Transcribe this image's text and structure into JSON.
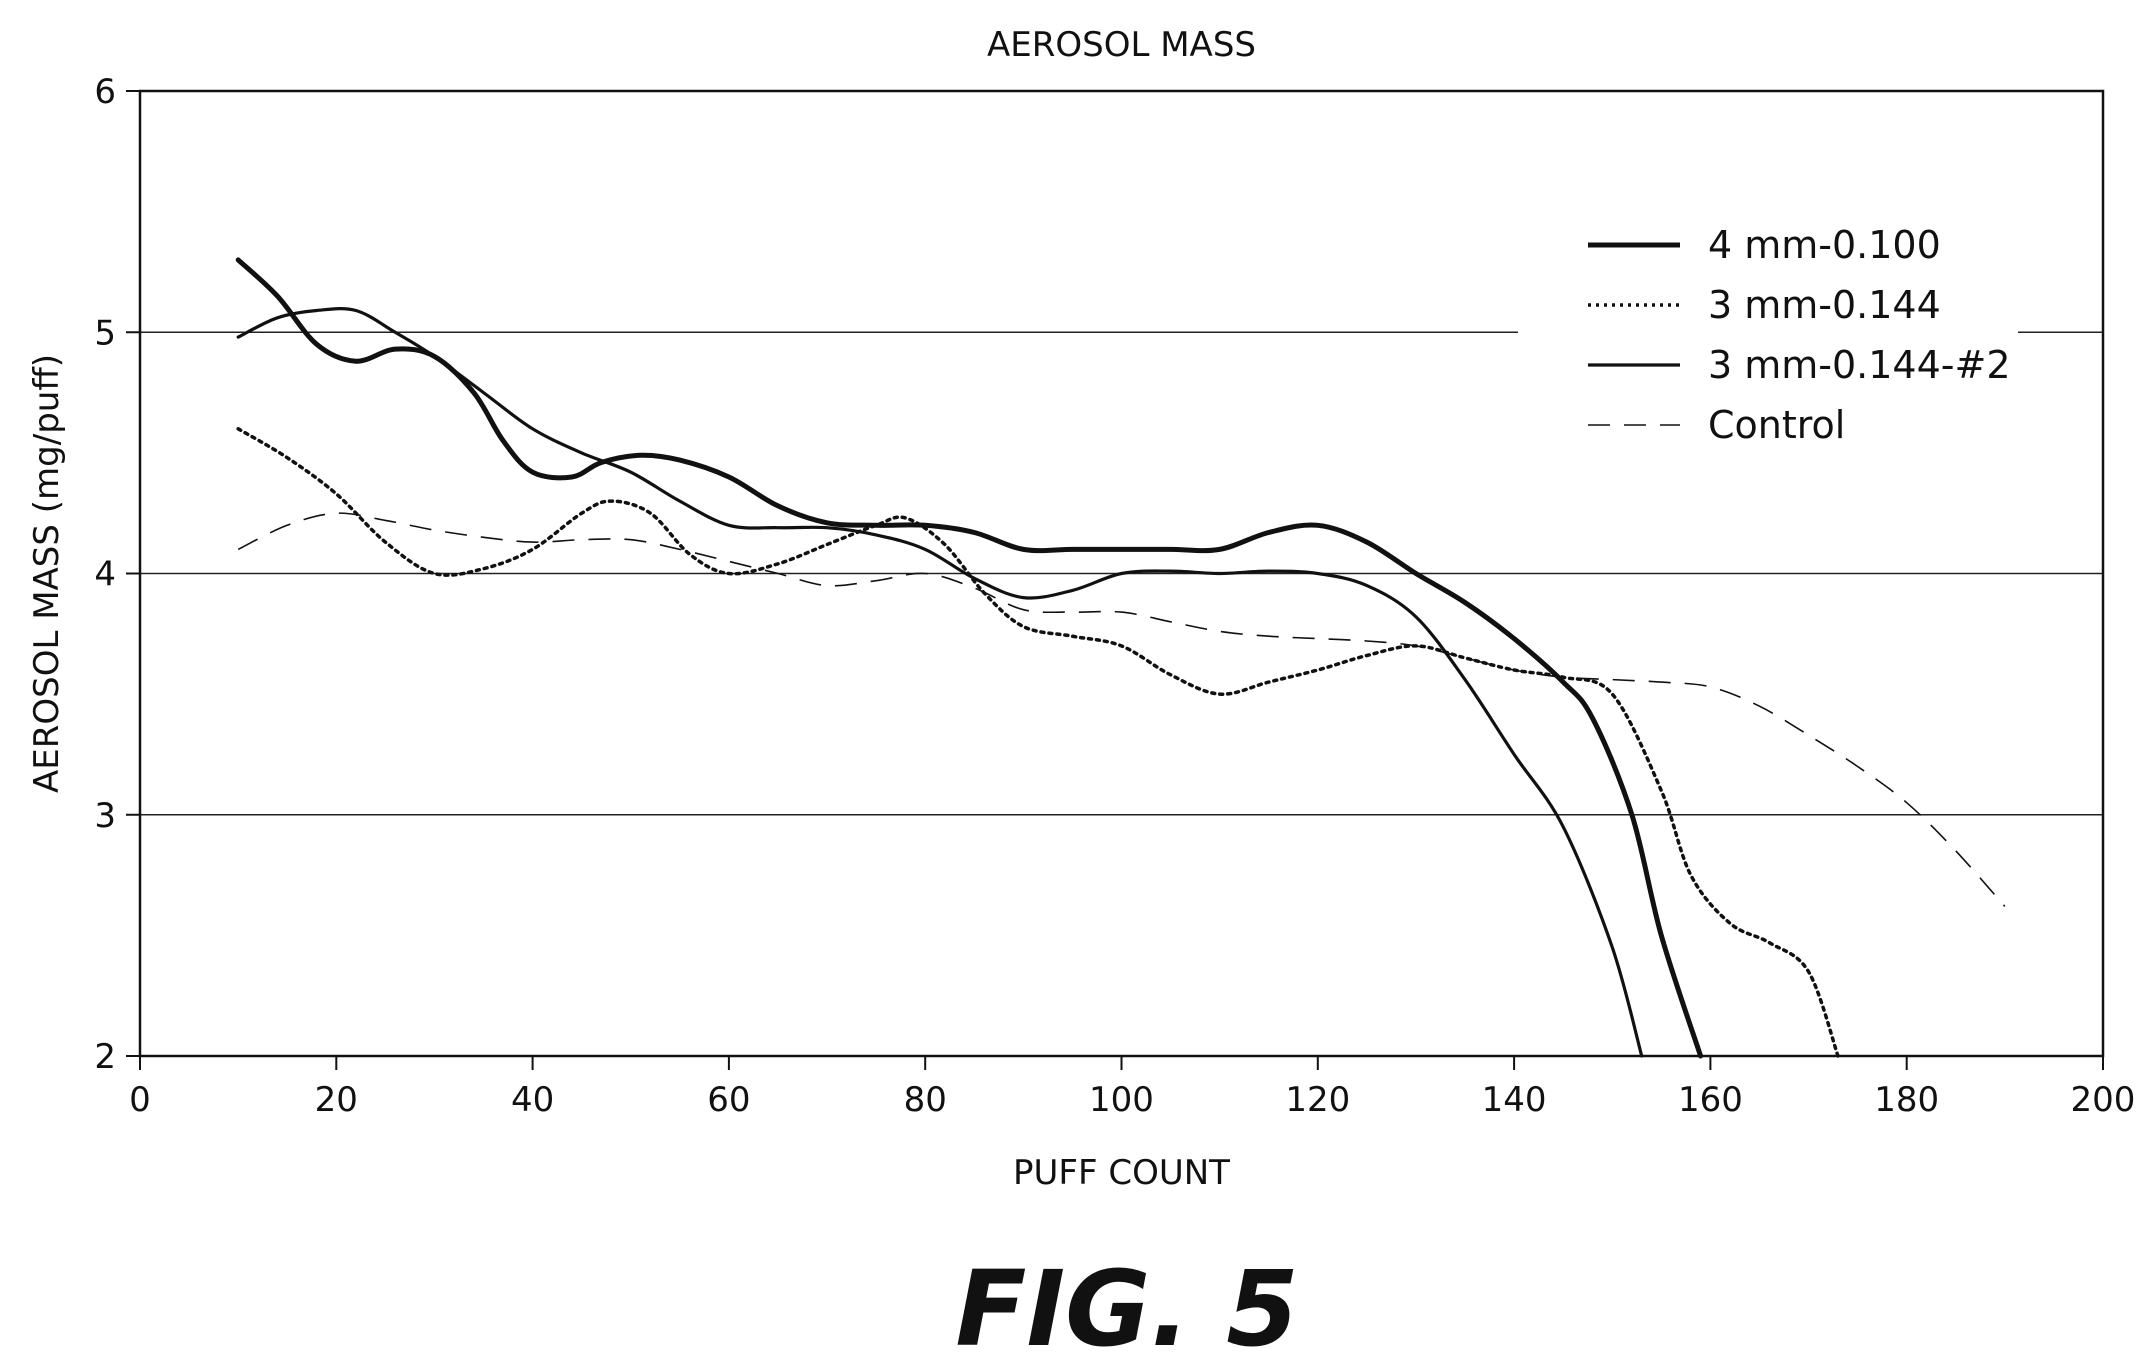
{
  "chart_data": {
    "type": "line",
    "title": "AEROSOL MASS",
    "xlabel": "PUFF COUNT",
    "ylabel": "AEROSOL MASS (mg/puff)",
    "xlim": [
      0,
      200
    ],
    "ylim": [
      2,
      6
    ],
    "x_ticks": [
      0,
      20,
      40,
      60,
      80,
      100,
      120,
      140,
      160,
      180,
      200
    ],
    "y_ticks": [
      2,
      3,
      4,
      5,
      6
    ],
    "grid": "horizontal",
    "legend_position": "top-right",
    "series": [
      {
        "name": "4 mm-0.100",
        "style": "solid-bold",
        "points": [
          [
            10,
            5.3
          ],
          [
            14,
            5.15
          ],
          [
            18,
            4.95
          ],
          [
            22,
            4.88
          ],
          [
            26,
            4.93
          ],
          [
            30,
            4.9
          ],
          [
            34,
            4.75
          ],
          [
            37,
            4.55
          ],
          [
            40,
            4.42
          ],
          [
            44,
            4.4
          ],
          [
            47,
            4.46
          ],
          [
            51,
            4.49
          ],
          [
            55,
            4.47
          ],
          [
            60,
            4.4
          ],
          [
            65,
            4.28
          ],
          [
            70,
            4.21
          ],
          [
            75,
            4.2
          ],
          [
            80,
            4.2
          ],
          [
            85,
            4.17
          ],
          [
            90,
            4.1
          ],
          [
            95,
            4.1
          ],
          [
            100,
            4.1
          ],
          [
            105,
            4.1
          ],
          [
            110,
            4.1
          ],
          [
            115,
            4.17
          ],
          [
            120,
            4.2
          ],
          [
            125,
            4.13
          ],
          [
            130,
            4.0
          ],
          [
            135,
            3.88
          ],
          [
            140,
            3.73
          ],
          [
            145,
            3.55
          ],
          [
            148,
            3.4
          ],
          [
            152,
            3.0
          ],
          [
            155,
            2.5
          ],
          [
            159,
            2.0
          ]
        ]
      },
      {
        "name": "3 mm-0.144",
        "style": "dotted",
        "points": [
          [
            10,
            4.6
          ],
          [
            15,
            4.48
          ],
          [
            20,
            4.33
          ],
          [
            25,
            4.13
          ],
          [
            30,
            4.0
          ],
          [
            35,
            4.02
          ],
          [
            40,
            4.1
          ],
          [
            45,
            4.25
          ],
          [
            48,
            4.3
          ],
          [
            52,
            4.25
          ],
          [
            56,
            4.08
          ],
          [
            60,
            4.0
          ],
          [
            65,
            4.04
          ],
          [
            70,
            4.12
          ],
          [
            75,
            4.2
          ],
          [
            78,
            4.23
          ],
          [
            82,
            4.12
          ],
          [
            86,
            3.92
          ],
          [
            90,
            3.78
          ],
          [
            95,
            3.74
          ],
          [
            100,
            3.7
          ],
          [
            105,
            3.58
          ],
          [
            110,
            3.5
          ],
          [
            115,
            3.55
          ],
          [
            120,
            3.6
          ],
          [
            125,
            3.66
          ],
          [
            130,
            3.7
          ],
          [
            135,
            3.65
          ],
          [
            140,
            3.6
          ],
          [
            145,
            3.57
          ],
          [
            150,
            3.5
          ],
          [
            155,
            3.1
          ],
          [
            158,
            2.75
          ],
          [
            162,
            2.55
          ],
          [
            166,
            2.47
          ],
          [
            170,
            2.35
          ],
          [
            173,
            2.0
          ]
        ]
      },
      {
        "name": "3 mm-0.144-#2",
        "style": "solid",
        "points": [
          [
            10,
            4.98
          ],
          [
            14,
            5.06
          ],
          [
            18,
            5.09
          ],
          [
            22,
            5.09
          ],
          [
            26,
            5.0
          ],
          [
            30,
            4.9
          ],
          [
            35,
            4.75
          ],
          [
            40,
            4.6
          ],
          [
            45,
            4.5
          ],
          [
            50,
            4.42
          ],
          [
            55,
            4.3
          ],
          [
            60,
            4.2
          ],
          [
            65,
            4.19
          ],
          [
            70,
            4.19
          ],
          [
            75,
            4.16
          ],
          [
            80,
            4.1
          ],
          [
            85,
            3.98
          ],
          [
            90,
            3.9
          ],
          [
            95,
            3.93
          ],
          [
            100,
            4.0
          ],
          [
            105,
            4.01
          ],
          [
            110,
            4.0
          ],
          [
            115,
            4.01
          ],
          [
            120,
            4.0
          ],
          [
            125,
            3.95
          ],
          [
            130,
            3.82
          ],
          [
            135,
            3.56
          ],
          [
            140,
            3.25
          ],
          [
            145,
            2.95
          ],
          [
            150,
            2.45
          ],
          [
            153,
            2.0
          ]
        ]
      },
      {
        "name": "Control",
        "style": "dashed",
        "points": [
          [
            10,
            4.1
          ],
          [
            15,
            4.2
          ],
          [
            20,
            4.25
          ],
          [
            25,
            4.22
          ],
          [
            30,
            4.18
          ],
          [
            35,
            4.15
          ],
          [
            40,
            4.13
          ],
          [
            45,
            4.14
          ],
          [
            50,
            4.14
          ],
          [
            55,
            4.1
          ],
          [
            60,
            4.05
          ],
          [
            65,
            4.0
          ],
          [
            70,
            3.95
          ],
          [
            75,
            3.97
          ],
          [
            80,
            4.0
          ],
          [
            85,
            3.94
          ],
          [
            90,
            3.85
          ],
          [
            95,
            3.84
          ],
          [
            100,
            3.84
          ],
          [
            105,
            3.8
          ],
          [
            110,
            3.76
          ],
          [
            115,
            3.74
          ],
          [
            120,
            3.73
          ],
          [
            125,
            3.72
          ],
          [
            130,
            3.7
          ],
          [
            135,
            3.65
          ],
          [
            140,
            3.6
          ],
          [
            145,
            3.57
          ],
          [
            150,
            3.56
          ],
          [
            155,
            3.55
          ],
          [
            160,
            3.53
          ],
          [
            165,
            3.45
          ],
          [
            170,
            3.33
          ],
          [
            175,
            3.2
          ],
          [
            180,
            3.05
          ],
          [
            185,
            2.85
          ],
          [
            190,
            2.62
          ]
        ]
      }
    ]
  },
  "figure_label": "FIG. 5"
}
